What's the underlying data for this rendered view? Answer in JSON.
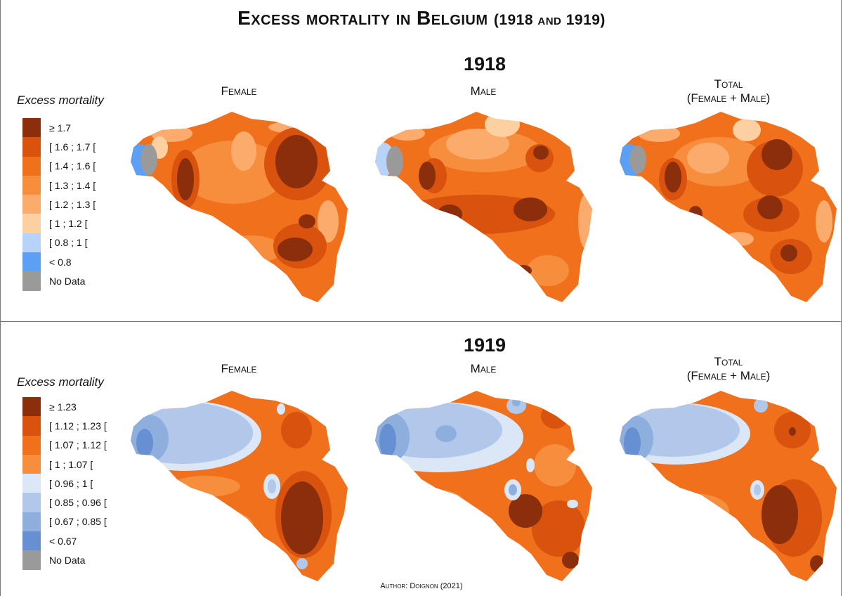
{
  "title": {
    "main": "Excess mortality in Belgium",
    "sub": "(1918 and 1919)"
  },
  "author": "Author: Doignon (2021)",
  "panels": {
    "female": "Female",
    "male": "Male",
    "total_line1": "Total",
    "total_line2": "(Female + Male)"
  },
  "y1918": {
    "year": "1918",
    "legend_title": "Excess mortality",
    "legend": [
      {
        "label": "≥ 1.7",
        "color": "#8b2e0b"
      },
      {
        "label": "[ 1.6 ; 1.7 [",
        "color": "#d9520e"
      },
      {
        "label": "[ 1.4 ; 1.6 [",
        "color": "#f0701c"
      },
      {
        "label": "[ 1.3 ; 1.4 [",
        "color": "#f78e3e"
      },
      {
        "label": "[ 1.2 ; 1.3 [",
        "color": "#fbab6b"
      },
      {
        "label": "[ 1 ; 1.2 [",
        "color": "#fdd0a2"
      },
      {
        "label": "[ 0.8 ; 1 [",
        "color": "#b7d3fa"
      },
      {
        "label": "< 0.8",
        "color": "#5ba0f5"
      },
      {
        "label": "No Data",
        "color": "#9a9a9a"
      }
    ]
  },
  "y1919": {
    "year": "1919",
    "legend_title": "Excess mortality",
    "legend": [
      {
        "label": "≥ 1.23",
        "color": "#8b2e0b"
      },
      {
        "label": "[ 1.12 ; 1.23 [",
        "color": "#d9520e"
      },
      {
        "label": "[ 1.07 ; 1.12 [",
        "color": "#f0701c"
      },
      {
        "label": "[ 1 ; 1.07 [",
        "color": "#f78e3e"
      },
      {
        "label": "[ 0.96 ; 1 [",
        "color": "#dbe6f6"
      },
      {
        "label": "[ 0.85 ; 0.96 [",
        "color": "#b2c8ea"
      },
      {
        "label": "[ 0.67 ; 0.85 [",
        "color": "#8eaede"
      },
      {
        "label": "< 0.67",
        "color": "#6690d2"
      },
      {
        "label": "No Data",
        "color": "#9a9a9a"
      }
    ]
  }
}
